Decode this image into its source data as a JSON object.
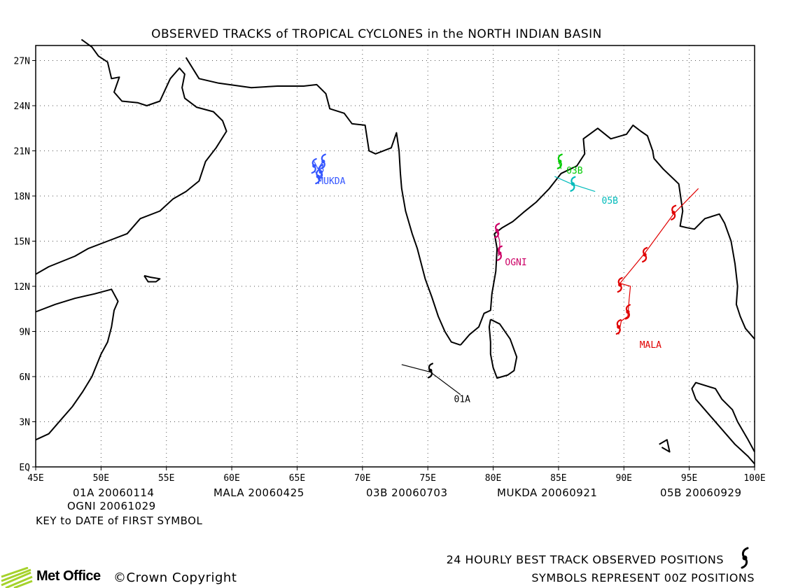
{
  "title": "OBSERVED TRACKS of TROPICAL CYCLONES in the NORTH INDIAN BASIN",
  "axes": {
    "x_ticks": [
      "45E",
      "50E",
      "55E",
      "60E",
      "65E",
      "70E",
      "75E",
      "80E",
      "85E",
      "90E",
      "95E",
      "100E"
    ],
    "y_ticks": [
      "EQ",
      "3N",
      "6N",
      "9N",
      "12N",
      "15N",
      "18N",
      "21N",
      "24N",
      "27N"
    ],
    "lon_range": [
      45,
      100
    ],
    "lat_range": [
      0,
      28
    ],
    "grid": "dotted"
  },
  "storms": [
    {
      "name": "01A",
      "color": "#000000",
      "label": "01A",
      "label_at": [
        77.0,
        4.3
      ],
      "track": [
        [
          73.0,
          6.8
        ],
        [
          75.2,
          6.3
        ],
        [
          77.5,
          4.8
        ]
      ],
      "symbols": [
        [
          75.2,
          6.4
        ]
      ]
    },
    {
      "name": "MALA",
      "color": "#e00000",
      "label": "MALA",
      "label_at": [
        91.2,
        7.9
      ],
      "track": [
        [
          89.6,
          8.8
        ],
        [
          89.8,
          9.7
        ],
        [
          90.3,
          10.0
        ],
        [
          90.4,
          11.1
        ],
        [
          90.5,
          12.0
        ],
        [
          89.7,
          12.2
        ],
        [
          91.6,
          14.2
        ],
        [
          93.8,
          16.8
        ],
        [
          95.7,
          18.5
        ]
      ],
      "symbols": [
        [
          89.6,
          9.3
        ],
        [
          90.3,
          10.3
        ],
        [
          89.7,
          12.1
        ],
        [
          91.6,
          14.1
        ],
        [
          93.8,
          16.9
        ]
      ]
    },
    {
      "name": "03B",
      "color": "#00cc00",
      "label": "03B",
      "label_at": [
        85.6,
        19.5
      ],
      "track": [
        [
          85.0,
          20.4
        ],
        [
          85.2,
          19.8
        ]
      ],
      "symbols": [
        [
          85.1,
          20.3
        ]
      ]
    },
    {
      "name": "MUKDA",
      "color": "#3355ff",
      "label": "MUKDA",
      "label_at": [
        66.6,
        18.8
      ],
      "track": [
        [
          66.3,
          20.3
        ],
        [
          66.6,
          19.8
        ],
        [
          66.9,
          20.2
        ],
        [
          67.0,
          19.7
        ],
        [
          66.7,
          19.2
        ],
        [
          66.4,
          19.6
        ]
      ],
      "symbols": [
        [
          66.3,
          20.0
        ],
        [
          66.8,
          19.6
        ],
        [
          67.0,
          20.3
        ],
        [
          66.6,
          19.3
        ]
      ]
    },
    {
      "name": "05B",
      "color": "#00bbbb",
      "label": "05B",
      "label_at": [
        88.3,
        17.5
      ],
      "track": [
        [
          84.7,
          19.3
        ],
        [
          86.0,
          18.8
        ],
        [
          87.8,
          18.3
        ]
      ],
      "symbols": [
        [
          86.1,
          18.8
        ]
      ]
    },
    {
      "name": "OGNI",
      "color": "#cc0066",
      "label": "OGNI",
      "label_at": [
        80.9,
        13.4
      ],
      "track": [
        [
          80.2,
          15.9
        ],
        [
          80.5,
          15.0
        ],
        [
          80.5,
          14.5
        ],
        [
          80.4,
          14.0
        ]
      ],
      "symbols": [
        [
          80.3,
          15.7
        ],
        [
          80.5,
          14.2
        ]
      ]
    }
  ],
  "key": {
    "rows": [
      [
        "01A 20060114",
        "MALA 20060425",
        "03B 20060703",
        "MUKDA 20060921",
        "05B 20060929"
      ],
      [
        "OGNI 20061029"
      ]
    ],
    "caption": "KEY to DATE of FIRST SYMBOL"
  },
  "footer": {
    "logo_name": "Met Office",
    "copyright": "©Crown Copyright",
    "line1": "24 HOURLY BEST TRACK OBSERVED POSITIONS",
    "line2": "SYMBOLS REPRESENT 00Z POSITIONS",
    "brand_color": "#a5d22b"
  },
  "coastlines": {
    "africa_arabia": [
      [
        45.0,
        12.8
      ],
      [
        46.0,
        13.3
      ],
      [
        48.0,
        14.0
      ],
      [
        49.0,
        14.5
      ],
      [
        50.5,
        15.0
      ],
      [
        52.0,
        15.5
      ],
      [
        53.0,
        16.5
      ],
      [
        54.5,
        17.0
      ],
      [
        55.5,
        17.8
      ],
      [
        56.5,
        18.3
      ],
      [
        57.5,
        19.0
      ],
      [
        58.0,
        20.3
      ],
      [
        58.8,
        21.2
      ],
      [
        59.6,
        22.3
      ],
      [
        59.3,
        23.0
      ],
      [
        58.6,
        23.6
      ],
      [
        57.3,
        23.9
      ],
      [
        56.4,
        24.5
      ],
      [
        56.2,
        25.2
      ],
      [
        56.4,
        26.1
      ],
      [
        56.0,
        26.5
      ],
      [
        55.3,
        25.8
      ],
      [
        54.5,
        24.3
      ],
      [
        53.5,
        24.0
      ],
      [
        52.8,
        24.2
      ],
      [
        51.6,
        24.3
      ],
      [
        51.0,
        24.9
      ],
      [
        51.4,
        25.9
      ],
      [
        50.8,
        25.8
      ],
      [
        50.5,
        26.9
      ],
      [
        49.8,
        27.3
      ],
      [
        49.3,
        27.9
      ],
      [
        48.5,
        28.4
      ]
    ],
    "persia": [
      [
        56.5,
        27.2
      ],
      [
        57.5,
        25.8
      ],
      [
        59.0,
        25.5
      ],
      [
        61.5,
        25.2
      ],
      [
        63.5,
        25.3
      ],
      [
        65.5,
        25.3
      ],
      [
        66.5,
        25.4
      ],
      [
        67.2,
        24.8
      ],
      [
        67.5,
        23.8
      ],
      [
        68.6,
        23.5
      ],
      [
        69.2,
        22.8
      ],
      [
        70.2,
        22.7
      ],
      [
        70.5,
        21.0
      ],
      [
        71.0,
        20.8
      ],
      [
        72.2,
        21.2
      ],
      [
        72.6,
        22.2
      ],
      [
        72.8,
        21.0
      ],
      [
        72.9,
        19.5
      ],
      [
        73.0,
        18.5
      ],
      [
        73.3,
        17.0
      ],
      [
        73.8,
        15.5
      ],
      [
        74.2,
        14.5
      ],
      [
        74.5,
        13.5
      ],
      [
        74.8,
        12.5
      ],
      [
        75.3,
        11.3
      ],
      [
        75.8,
        10.0
      ],
      [
        76.3,
        9.0
      ],
      [
        76.8,
        8.3
      ],
      [
        77.5,
        8.1
      ]
    ],
    "india_east": [
      [
        77.5,
        8.1
      ],
      [
        78.2,
        8.8
      ],
      [
        78.9,
        9.3
      ],
      [
        79.3,
        10.2
      ],
      [
        79.8,
        10.4
      ],
      [
        79.9,
        11.5
      ],
      [
        80.2,
        13.0
      ],
      [
        80.3,
        14.5
      ],
      [
        80.1,
        15.5
      ],
      [
        80.7,
        15.9
      ],
      [
        81.5,
        16.3
      ],
      [
        82.3,
        16.9
      ],
      [
        83.3,
        17.6
      ],
      [
        84.3,
        18.5
      ],
      [
        85.2,
        19.5
      ],
      [
        86.4,
        20.0
      ],
      [
        87.0,
        20.8
      ],
      [
        86.9,
        21.8
      ],
      [
        88.0,
        22.5
      ],
      [
        89.0,
        21.8
      ],
      [
        90.2,
        22.1
      ],
      [
        90.7,
        22.7
      ],
      [
        91.3,
        22.3
      ],
      [
        91.8,
        22.0
      ],
      [
        92.2,
        21.0
      ],
      [
        92.3,
        20.5
      ]
    ],
    "myanmar": [
      [
        92.3,
        20.5
      ],
      [
        93.0,
        19.8
      ],
      [
        94.2,
        18.8
      ],
      [
        94.5,
        17.0
      ],
      [
        94.3,
        16.0
      ],
      [
        94.8,
        15.9
      ],
      [
        95.4,
        15.8
      ],
      [
        96.2,
        16.5
      ],
      [
        97.3,
        16.8
      ],
      [
        97.7,
        16.2
      ],
      [
        98.2,
        15.0
      ],
      [
        98.5,
        13.5
      ],
      [
        98.7,
        12.0
      ],
      [
        98.6,
        10.8
      ],
      [
        98.9,
        10.0
      ],
      [
        99.3,
        9.2
      ],
      [
        100.0,
        8.5
      ]
    ],
    "malay": [
      [
        100.0,
        1.0
      ],
      [
        99.5,
        1.8
      ],
      [
        98.7,
        3.0
      ],
      [
        98.3,
        3.8
      ],
      [
        97.5,
        4.5
      ],
      [
        97.0,
        5.2
      ],
      [
        95.5,
        5.6
      ],
      [
        95.2,
        5.2
      ],
      [
        95.5,
        4.5
      ],
      [
        96.5,
        3.5
      ],
      [
        97.5,
        2.5
      ],
      [
        98.5,
        1.5
      ],
      [
        99.5,
        0.7
      ],
      [
        100.0,
        0.2
      ]
    ],
    "somalia": [
      [
        45.0,
        10.3
      ],
      [
        46.5,
        10.8
      ],
      [
        48.0,
        11.2
      ],
      [
        49.5,
        11.5
      ],
      [
        50.8,
        11.8
      ],
      [
        51.3,
        11.0
      ],
      [
        51.0,
        10.4
      ],
      [
        50.8,
        9.3
      ],
      [
        50.5,
        8.3
      ],
      [
        50.0,
        7.5
      ],
      [
        49.3,
        6.0
      ],
      [
        48.6,
        5.0
      ],
      [
        47.8,
        4.0
      ],
      [
        47.0,
        3.2
      ],
      [
        46.0,
        2.2
      ],
      [
        45.0,
        1.8
      ]
    ],
    "sri_lanka": [
      [
        79.8,
        9.8
      ],
      [
        80.5,
        9.5
      ],
      [
        81.3,
        8.5
      ],
      [
        81.8,
        7.3
      ],
      [
        81.6,
        6.4
      ],
      [
        81.1,
        6.1
      ],
      [
        80.3,
        5.9
      ],
      [
        80.0,
        6.6
      ],
      [
        79.8,
        7.5
      ],
      [
        79.8,
        8.3
      ],
      [
        79.7,
        9.3
      ],
      [
        79.8,
        9.8
      ]
    ],
    "socotra": [
      [
        53.3,
        12.7
      ],
      [
        53.8,
        12.6
      ],
      [
        54.5,
        12.5
      ],
      [
        54.2,
        12.3
      ],
      [
        53.6,
        12.3
      ],
      [
        53.3,
        12.7
      ]
    ],
    "andaman": [
      [
        92.7,
        1.5
      ],
      [
        93.3,
        1.8
      ],
      [
        93.5,
        1.0
      ],
      [
        92.9,
        1.3
      ]
    ]
  }
}
